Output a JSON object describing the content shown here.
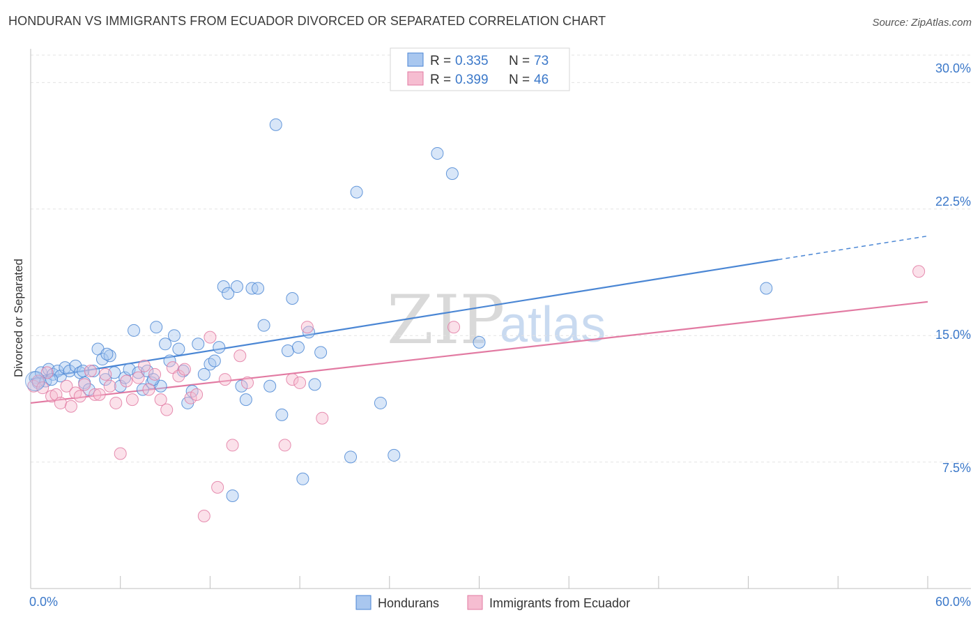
{
  "title": "HONDURAN VS IMMIGRANTS FROM ECUADOR DIVORCED OR SEPARATED CORRELATION CHART",
  "source": "Source: ZipAtlas.com",
  "colors": {
    "blue": "#4a86d4",
    "blue_fill": "#a9c7ef",
    "pink": "#e27aa2",
    "pink_fill": "#f6bdd1",
    "tick": "#3b78c9"
  },
  "watermark": {
    "zip": "ZIP",
    "atlas": "atlas"
  },
  "chart_data": {
    "type": "scatter",
    "title": "HONDURAN VS IMMIGRANTS FROM ECUADOR DIVORCED OR SEPARATED CORRELATION CHART",
    "xlabel": "",
    "ylabel": "Divorced or Separated",
    "xlim": [
      0,
      60
    ],
    "ylim": [
      0,
      32
    ],
    "x_tick_labels": [
      "0.0%",
      "60.0%"
    ],
    "y_ticks": [
      7.5,
      15.0,
      22.5,
      30.0
    ],
    "y_tick_labels": [
      "7.5%",
      "15.0%",
      "22.5%",
      "30.0%"
    ],
    "grid": true,
    "legend_top": [
      {
        "r_label": "R =",
        "r_value": "0.335",
        "n_label": "N =",
        "n_value": "73"
      },
      {
        "r_label": "R =",
        "r_value": "0.399",
        "n_label": "N =",
        "n_value": "46"
      }
    ],
    "series": [
      {
        "name": "Hondurans",
        "color": "#4a86d4",
        "trend": {
          "x0": 0,
          "y0": 12.4,
          "x1": 50,
          "y1": 19.5,
          "dash_x1": 60,
          "dash_y1": 20.9
        },
        "points": [
          [
            0.3,
            12.5
          ],
          [
            0.5,
            12.2
          ],
          [
            0.7,
            12.8
          ],
          [
            1.0,
            12.3
          ],
          [
            1.2,
            13.0
          ],
          [
            1.5,
            12.7
          ],
          [
            1.8,
            12.9
          ],
          [
            2.0,
            12.6
          ],
          [
            2.3,
            13.1
          ],
          [
            2.6,
            12.9
          ],
          [
            3.0,
            13.2
          ],
          [
            3.3,
            12.8
          ],
          [
            3.6,
            12.2
          ],
          [
            3.9,
            11.8
          ],
          [
            4.2,
            12.9
          ],
          [
            4.5,
            14.2
          ],
          [
            4.8,
            13.6
          ],
          [
            5.0,
            12.4
          ],
          [
            5.3,
            13.8
          ],
          [
            5.6,
            12.8
          ],
          [
            6.0,
            12.0
          ],
          [
            6.3,
            12.5
          ],
          [
            6.6,
            13.0
          ],
          [
            6.9,
            15.3
          ],
          [
            7.2,
            12.8
          ],
          [
            7.5,
            11.8
          ],
          [
            7.8,
            12.9
          ],
          [
            8.1,
            12.2
          ],
          [
            8.4,
            15.5
          ],
          [
            8.7,
            12.0
          ],
          [
            9.0,
            14.5
          ],
          [
            9.3,
            13.5
          ],
          [
            9.6,
            15.0
          ],
          [
            9.9,
            14.2
          ],
          [
            10.2,
            12.9
          ],
          [
            10.5,
            11.0
          ],
          [
            10.8,
            11.7
          ],
          [
            11.2,
            14.5
          ],
          [
            11.6,
            12.7
          ],
          [
            12.0,
            13.3
          ],
          [
            12.3,
            13.5
          ],
          [
            12.6,
            14.3
          ],
          [
            12.9,
            17.9
          ],
          [
            13.2,
            17.5
          ],
          [
            13.5,
            5.5
          ],
          [
            13.8,
            17.9
          ],
          [
            14.1,
            12.0
          ],
          [
            14.4,
            11.2
          ],
          [
            14.8,
            17.8
          ],
          [
            15.2,
            17.8
          ],
          [
            15.6,
            15.6
          ],
          [
            16.0,
            12.0
          ],
          [
            16.4,
            27.5
          ],
          [
            16.8,
            10.3
          ],
          [
            17.2,
            14.1
          ],
          [
            17.5,
            17.2
          ],
          [
            17.9,
            14.3
          ],
          [
            18.2,
            6.5
          ],
          [
            18.6,
            15.2
          ],
          [
            19.0,
            12.1
          ],
          [
            19.4,
            14.0
          ],
          [
            21.4,
            7.8
          ],
          [
            21.8,
            23.5
          ],
          [
            23.4,
            11.0
          ],
          [
            24.3,
            7.9
          ],
          [
            27.2,
            25.8
          ],
          [
            28.2,
            24.6
          ],
          [
            30.0,
            14.6
          ],
          [
            49.2,
            17.8
          ],
          [
            1.4,
            12.4
          ],
          [
            3.5,
            12.9
          ],
          [
            5.1,
            13.9
          ],
          [
            8.2,
            12.4
          ]
        ]
      },
      {
        "name": "Immigrants from Ecuador",
        "color": "#e27aa2",
        "trend": {
          "x0": 0,
          "y0": 11.0,
          "x1": 60,
          "y1": 17.0
        },
        "points": [
          [
            0.2,
            12.0
          ],
          [
            0.5,
            12.3
          ],
          [
            0.8,
            11.9
          ],
          [
            1.1,
            12.8
          ],
          [
            1.4,
            11.4
          ],
          [
            1.7,
            11.5
          ],
          [
            2.0,
            11.0
          ],
          [
            2.4,
            12.0
          ],
          [
            2.7,
            10.8
          ],
          [
            3.0,
            11.6
          ],
          [
            3.3,
            11.4
          ],
          [
            3.6,
            12.1
          ],
          [
            4.0,
            12.9
          ],
          [
            4.3,
            11.5
          ],
          [
            4.6,
            11.5
          ],
          [
            5.0,
            12.7
          ],
          [
            5.3,
            12.0
          ],
          [
            5.7,
            11.0
          ],
          [
            6.0,
            8.0
          ],
          [
            6.4,
            12.3
          ],
          [
            6.8,
            11.2
          ],
          [
            7.2,
            12.5
          ],
          [
            7.6,
            13.2
          ],
          [
            7.9,
            11.8
          ],
          [
            8.3,
            12.7
          ],
          [
            8.7,
            11.2
          ],
          [
            9.1,
            10.6
          ],
          [
            9.5,
            13.1
          ],
          [
            9.9,
            12.6
          ],
          [
            10.3,
            13.0
          ],
          [
            10.7,
            11.3
          ],
          [
            11.1,
            11.5
          ],
          [
            11.6,
            4.3
          ],
          [
            12.0,
            14.9
          ],
          [
            12.5,
            6.0
          ],
          [
            13.0,
            12.4
          ],
          [
            13.5,
            8.5
          ],
          [
            14.0,
            13.8
          ],
          [
            14.5,
            12.2
          ],
          [
            17.0,
            8.5
          ],
          [
            17.5,
            12.4
          ],
          [
            18.0,
            12.2
          ],
          [
            18.5,
            15.5
          ],
          [
            19.5,
            10.1
          ],
          [
            28.3,
            15.5
          ],
          [
            59.4,
            18.8
          ]
        ]
      }
    ]
  },
  "legend_bottom": [
    {
      "label": "Hondurans"
    },
    {
      "label": "Immigrants from Ecuador"
    }
  ]
}
